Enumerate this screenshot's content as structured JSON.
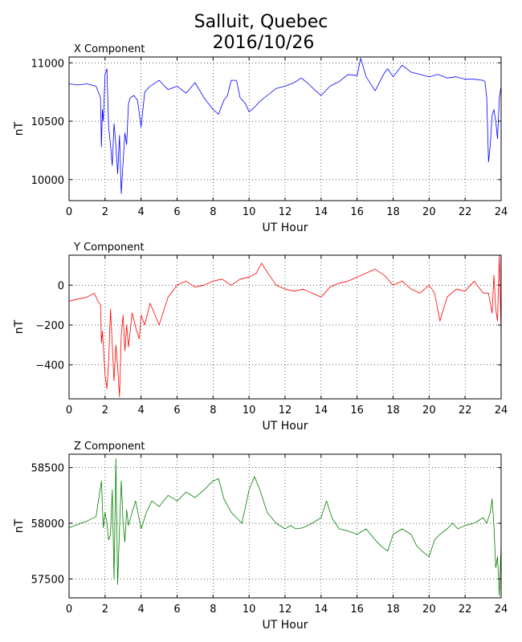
{
  "figure": {
    "title_line1": "Salluit, Quebec",
    "title_line2": "2016/10/26"
  },
  "chart_data": [
    {
      "type": "line",
      "title": "X Component",
      "xlabel": "UT Hour",
      "ylabel": "nT",
      "color": "#0000ff",
      "xlim": [
        0,
        24
      ],
      "ylim": [
        9820,
        11050
      ],
      "xticks": [
        0,
        2,
        4,
        6,
        8,
        10,
        12,
        14,
        16,
        18,
        20,
        22,
        24
      ],
      "yticks": [
        10000,
        10500,
        11000
      ],
      "grid": true,
      "series": [
        {
          "x": [
            0,
            0.5,
            1,
            1.5,
            1.75,
            1.8,
            1.85,
            1.9,
            2.0,
            2.1,
            2.2,
            2.3,
            2.4,
            2.5,
            2.6,
            2.7,
            2.8,
            2.9,
            3.0,
            3.1,
            3.2,
            3.3,
            3.4,
            3.6,
            3.8,
            4.0,
            4.2,
            4.5,
            5.0,
            5.5,
            6.0,
            6.5,
            7.0,
            7.5,
            8.0,
            8.3,
            8.6,
            8.8,
            9.0,
            9.3,
            9.5,
            9.8,
            10.0,
            10.3,
            10.6,
            11.0,
            11.5,
            12.0,
            12.5,
            12.9,
            13.3,
            13.7,
            14.0,
            14.5,
            15.0,
            15.5,
            16.0,
            16.2,
            16.5,
            17.0,
            17.5,
            17.7,
            18.0,
            18.5,
            19.0,
            19.5,
            20.0,
            20.5,
            21.0,
            21.5,
            22.0,
            22.5,
            23.0,
            23.1,
            23.2,
            23.3,
            23.4,
            23.5,
            23.6,
            23.7,
            23.8,
            23.9,
            24.0
          ],
          "y": [
            10820,
            10810,
            10820,
            10800,
            10700,
            10280,
            10600,
            10500,
            10900,
            10950,
            10450,
            10300,
            10120,
            10480,
            10300,
            10050,
            10380,
            9880,
            10150,
            10400,
            10300,
            10650,
            10700,
            10720,
            10680,
            10450,
            10750,
            10800,
            10850,
            10770,
            10800,
            10740,
            10830,
            10700,
            10600,
            10560,
            10680,
            10720,
            10850,
            10850,
            10700,
            10650,
            10580,
            10620,
            10670,
            10720,
            10780,
            10800,
            10830,
            10870,
            10820,
            10760,
            10720,
            10800,
            10840,
            10900,
            10890,
            11040,
            10880,
            10760,
            10910,
            10950,
            10880,
            10980,
            10920,
            10900,
            10880,
            10900,
            10870,
            10880,
            10860,
            10860,
            10850,
            10840,
            10700,
            10150,
            10300,
            10550,
            10600,
            10500,
            10350,
            10700,
            10800
          ]
        }
      ]
    },
    {
      "type": "line",
      "title": "Y Component",
      "xlabel": "UT Hour",
      "ylabel": "nT",
      "color": "#ff0000",
      "xlim": [
        0,
        24
      ],
      "ylim": [
        -570,
        150
      ],
      "xticks": [
        0,
        2,
        4,
        6,
        8,
        10,
        12,
        14,
        16,
        18,
        20,
        22,
        24
      ],
      "yticks": [
        -400,
        -200,
        0
      ],
      "grid": true,
      "series": [
        {
          "x": [
            0,
            0.5,
            1,
            1.4,
            1.6,
            1.75,
            1.8,
            1.85,
            1.9,
            2.0,
            2.1,
            2.2,
            2.3,
            2.4,
            2.5,
            2.6,
            2.7,
            2.8,
            2.9,
            3.0,
            3.1,
            3.2,
            3.3,
            3.5,
            3.7,
            3.9,
            4.0,
            4.2,
            4.5,
            5.0,
            5.5,
            6.0,
            6.5,
            7.0,
            7.5,
            8.0,
            8.5,
            9.0,
            9.5,
            10.0,
            10.4,
            10.7,
            10.9,
            11.2,
            11.5,
            12.0,
            12.5,
            13.0,
            13.5,
            14.0,
            14.5,
            15.0,
            15.5,
            16.0,
            16.5,
            17.0,
            17.5,
            18.0,
            18.5,
            19.0,
            19.5,
            20.0,
            20.3,
            20.6,
            21.0,
            21.5,
            22.0,
            22.5,
            23.0,
            23.3,
            23.5,
            23.6,
            23.7,
            23.8,
            23.9,
            24.0
          ],
          "y": [
            -80,
            -70,
            -60,
            -40,
            -80,
            -100,
            -290,
            -230,
            -300,
            -450,
            -520,
            -380,
            -120,
            -300,
            -480,
            -300,
            -410,
            -560,
            -250,
            -150,
            -330,
            -200,
            -310,
            -140,
            -210,
            -270,
            -150,
            -200,
            -90,
            -200,
            -60,
            0,
            20,
            -10,
            0,
            20,
            30,
            0,
            30,
            40,
            60,
            110,
            80,
            40,
            0,
            -20,
            -30,
            -20,
            -40,
            -60,
            -10,
            10,
            20,
            40,
            60,
            80,
            50,
            0,
            20,
            -20,
            -40,
            0,
            -40,
            -180,
            -60,
            -20,
            -30,
            20,
            -40,
            -40,
            -140,
            50,
            -120,
            -180,
            150,
            -250
          ]
        }
      ]
    },
    {
      "type": "line",
      "title": "Z Component",
      "xlabel": "UT Hour",
      "ylabel": "nT",
      "color": "#008000",
      "xlim": [
        0,
        24
      ],
      "ylim": [
        57330,
        58620
      ],
      "xticks": [
        0,
        2,
        4,
        6,
        8,
        10,
        12,
        14,
        16,
        18,
        20,
        22,
        24
      ],
      "yticks": [
        57500,
        58000,
        58500
      ],
      "grid": true,
      "series": [
        {
          "x": [
            0,
            0.5,
            1,
            1.5,
            1.8,
            1.9,
            2.0,
            2.1,
            2.2,
            2.3,
            2.4,
            2.5,
            2.6,
            2.7,
            2.8,
            2.9,
            3.0,
            3.1,
            3.2,
            3.3,
            3.5,
            3.7,
            4.0,
            4.3,
            4.6,
            5.0,
            5.5,
            6.0,
            6.5,
            7.0,
            7.5,
            8.0,
            8.3,
            8.6,
            9.0,
            9.3,
            9.6,
            10.0,
            10.3,
            10.6,
            11.0,
            11.5,
            12.0,
            12.3,
            12.6,
            13.0,
            13.5,
            14.0,
            14.3,
            14.6,
            15.0,
            15.5,
            16.0,
            16.5,
            17.0,
            17.3,
            17.7,
            18.0,
            18.5,
            19.0,
            19.3,
            19.6,
            20.0,
            20.3,
            20.6,
            21.0,
            21.3,
            21.6,
            22.0,
            22.5,
            23.0,
            23.2,
            23.4,
            23.5,
            23.6,
            23.7,
            23.8,
            23.9,
            24.0
          ],
          "y": [
            57960,
            57990,
            58020,
            58060,
            58380,
            57960,
            58100,
            58000,
            57850,
            57900,
            58300,
            57500,
            58580,
            57450,
            57950,
            58380,
            58000,
            57830,
            58120,
            57980,
            58100,
            58200,
            57950,
            58100,
            58200,
            58150,
            58250,
            58200,
            58280,
            58230,
            58300,
            58380,
            58400,
            58220,
            58100,
            58050,
            58000,
            58300,
            58420,
            58300,
            58100,
            58000,
            57950,
            57980,
            57950,
            57960,
            58000,
            58050,
            58200,
            58050,
            57950,
            57930,
            57900,
            57950,
            57850,
            57800,
            57750,
            57900,
            57950,
            57900,
            57800,
            57750,
            57700,
            57850,
            57900,
            57950,
            58000,
            57950,
            57980,
            58000,
            58050,
            58000,
            58100,
            58220,
            57980,
            57600,
            57700,
            57350,
            57800
          ]
        }
      ]
    }
  ]
}
